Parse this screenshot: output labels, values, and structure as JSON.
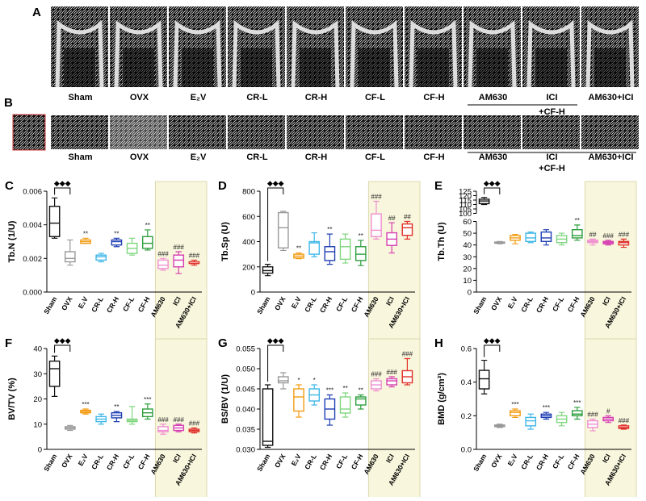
{
  "panel_a": {
    "letter": "A",
    "labels": [
      "Sham",
      "OVX",
      "E₂V",
      "CR-L",
      "CR-H",
      "CF-L",
      "CF-H",
      "AM630",
      "ICI",
      "AM630+ICI"
    ],
    "group_label": "+CF-H"
  },
  "panel_b": {
    "letter": "B",
    "labels": [
      "Sham",
      "OVX",
      "E₂V",
      "CR-L",
      "CR-H",
      "CF-L",
      "CF-H",
      "AM630",
      "ICI",
      "AM630+ICI"
    ],
    "group_label": "+CF-H"
  },
  "chart_data": [
    {
      "type": "box",
      "panel": "C",
      "ylabel": "Tb.N (1/U)",
      "categories": [
        "Sham",
        "OVX",
        "E₂V",
        "CR-L",
        "CR-H",
        "CF-L",
        "CF-H",
        "AM630",
        "ICI",
        "AM630+ICI"
      ],
      "colors": [
        "#111111",
        "#999999",
        "#f39c12",
        "#3fb7e8",
        "#1f3fb4",
        "#7fd67f",
        "#2e9e3e",
        "#f08fd0",
        "#d63fb0",
        "#e0302a"
      ],
      "min": [
        0.0032,
        0.0016,
        0.0029,
        0.0018,
        0.0027,
        0.0022,
        0.0025,
        0.0013,
        0.0011,
        0.0016
      ],
      "q1": [
        0.0033,
        0.0018,
        0.0029,
        0.0019,
        0.0028,
        0.0023,
        0.0026,
        0.0014,
        0.0015,
        0.0017
      ],
      "median": [
        0.0041,
        0.002,
        0.003,
        0.0021,
        0.003,
        0.0026,
        0.0029,
        0.0016,
        0.0019,
        0.0017
      ],
      "q3": [
        0.0051,
        0.0024,
        0.0031,
        0.0022,
        0.0031,
        0.0029,
        0.0033,
        0.0019,
        0.0022,
        0.0018
      ],
      "max": [
        0.0056,
        0.0031,
        0.0032,
        0.0023,
        0.0032,
        0.0032,
        0.0037,
        0.002,
        0.0024,
        0.0019
      ],
      "annotations": [
        null,
        null,
        "**",
        null,
        "**",
        null,
        "**",
        "###",
        "###",
        "###"
      ],
      "comparison_mark": "◆◆◆",
      "group_label": "+CF-H",
      "ylim": [
        0,
        0.006
      ],
      "yticks": [
        {
          "value": 0,
          "label": "0.000"
        },
        {
          "value": 0.002,
          "label": "0.002"
        },
        {
          "value": 0.004,
          "label": "0.004"
        },
        {
          "value": 0.006,
          "label": "0.006"
        }
      ]
    },
    {
      "type": "box",
      "panel": "D",
      "ylabel": "Tb.Sp (U)",
      "categories": [
        "Sham",
        "OVX",
        "E₂V",
        "CR-L",
        "CR-H",
        "CF-L",
        "CF-H",
        "AM630",
        "ICI",
        "AM630+ICI"
      ],
      "colors": [
        "#111111",
        "#999999",
        "#f39c12",
        "#3fb7e8",
        "#1f3fb4",
        "#7fd67f",
        "#2e9e3e",
        "#f08fd0",
        "#d63fb0",
        "#e0302a"
      ],
      "min": [
        130,
        330,
        265,
        280,
        220,
        230,
        210,
        420,
        310,
        420
      ],
      "q1": [
        150,
        350,
        270,
        300,
        250,
        260,
        250,
        440,
        370,
        450
      ],
      "median": [
        170,
        510,
        285,
        390,
        320,
        360,
        300,
        490,
        420,
        510
      ],
      "q3": [
        200,
        630,
        300,
        400,
        360,
        420,
        360,
        620,
        470,
        540
      ],
      "max": [
        220,
        640,
        310,
        470,
        460,
        460,
        410,
        720,
        550,
        560
      ],
      "annotations": [
        null,
        null,
        "**",
        null,
        "**",
        null,
        "**",
        "###",
        "##",
        "##"
      ],
      "comparison_mark": "◆◆◆",
      "group_label": "+CF-H",
      "ylim": [
        0,
        800
      ],
      "yticks": [
        0,
        200,
        400,
        600,
        800
      ]
    },
    {
      "type": "box",
      "panel": "E",
      "ylabel": "Tb.Th (U)",
      "categories": [
        "Sham",
        "OVX",
        "E₂V",
        "CR-L",
        "CR-H",
        "CF-L",
        "CF-H",
        "AM630",
        "ICI",
        "AM630+ICI"
      ],
      "colors": [
        "#111111",
        "#999999",
        "#f39c12",
        "#3fb7e8",
        "#1f3fb4",
        "#7fd67f",
        "#2e9e3e",
        "#f08fd0",
        "#d63fb0",
        "#e0302a"
      ],
      "min": [
        110,
        41,
        41,
        42,
        40,
        40,
        44,
        40,
        40,
        38
      ],
      "q1": [
        111,
        41.5,
        44,
        43,
        43,
        42,
        46,
        42,
        41,
        40
      ],
      "median": [
        114,
        42,
        46,
        46,
        46,
        45,
        48,
        43,
        42,
        42
      ],
      "q3": [
        116,
        42.5,
        48,
        50,
        51,
        48,
        53,
        44,
        43,
        43
      ],
      "max": [
        118,
        43,
        49,
        51,
        53,
        50,
        57,
        45,
        44,
        45
      ],
      "annotations": [
        null,
        null,
        null,
        null,
        null,
        null,
        "**",
        "##",
        "###",
        "###"
      ],
      "comparison_mark": "◆◆◆",
      "group_label": "+CF-H",
      "ylim": [
        0,
        60
      ],
      "yticks": [
        0,
        10,
        20,
        30,
        40,
        50,
        60
      ],
      "upper_ylim": [
        100,
        125
      ],
      "upper_yticks": [
        100,
        105,
        110,
        115,
        120,
        125
      ]
    },
    {
      "type": "box",
      "panel": "F",
      "ylabel": "BV/TV (%)",
      "categories": [
        "Sham",
        "OVX",
        "E₂V",
        "CR-L",
        "CR-H",
        "CF-L",
        "CF-H",
        "AM630",
        "ICI",
        "AM630+ICI"
      ],
      "colors": [
        "#111111",
        "#999999",
        "#f39c12",
        "#3fb7e8",
        "#1f3fb4",
        "#7fd67f",
        "#2e9e3e",
        "#f08fd0",
        "#d63fb0",
        "#e0302a"
      ],
      "min": [
        21,
        7.5,
        14,
        10,
        11,
        10,
        12,
        6,
        7,
        6.5
      ],
      "q1": [
        25,
        8,
        14.5,
        11,
        12.5,
        11,
        13,
        7,
        7.5,
        7
      ],
      "median": [
        32,
        8.5,
        15,
        12,
        13.5,
        11.5,
        14.5,
        7.5,
        8.5,
        7.5
      ],
      "q3": [
        35,
        9,
        15.5,
        13,
        14.5,
        12,
        16,
        9,
        9.5,
        8
      ],
      "max": [
        37,
        9.5,
        16,
        14,
        15,
        17,
        18,
        10,
        10,
        8.5
      ],
      "annotations": [
        null,
        null,
        "***",
        null,
        "**",
        null,
        "***",
        "###",
        "###",
        "###"
      ],
      "comparison_mark": "◆◆◆",
      "group_label": "+CF-H",
      "ylim": [
        0,
        40
      ],
      "yticks": [
        0,
        10,
        20,
        30,
        40
      ]
    },
    {
      "type": "box",
      "panel": "G",
      "ylabel": "BS/BV (1/U)",
      "categories": [
        "Sham",
        "OVX",
        "E₂V",
        "CR-L",
        "CR-H",
        "CF-L",
        "CF-H",
        "AM630",
        "ICI",
        "AM630+ICI"
      ],
      "colors": [
        "#111111",
        "#999999",
        "#f39c12",
        "#3fb7e8",
        "#1f3fb4",
        "#7fd67f",
        "#2e9e3e",
        "#f08fd0",
        "#d63fb0",
        "#e0302a"
      ],
      "min": [
        0.0305,
        0.045,
        0.038,
        0.041,
        0.036,
        0.038,
        0.04,
        0.0445,
        0.0455,
        0.046
      ],
      "q1": [
        0.031,
        0.0465,
        0.0395,
        0.042,
        0.0375,
        0.039,
        0.041,
        0.045,
        0.046,
        0.0465
      ],
      "median": [
        0.032,
        0.047,
        0.043,
        0.0435,
        0.04,
        0.04,
        0.0425,
        0.046,
        0.047,
        0.048
      ],
      "q3": [
        0.045,
        0.048,
        0.045,
        0.045,
        0.0425,
        0.043,
        0.043,
        0.047,
        0.0475,
        0.0495
      ],
      "max": [
        0.046,
        0.049,
        0.046,
        0.046,
        0.0435,
        0.044,
        0.0435,
        0.0475,
        0.048,
        0.0525
      ],
      "annotations": [
        null,
        null,
        "*",
        "*",
        "***",
        "**",
        "**",
        "###",
        "###",
        "###"
      ],
      "comparison_mark": "◆◆◆",
      "group_label": "+CF-H",
      "ylim": [
        0.03,
        0.055
      ],
      "yticks": [
        {
          "value": 0.03,
          "label": "0.030"
        },
        0.035,
        {
          "value": 0.04,
          "label": "0.040"
        },
        0.045,
        {
          "value": 0.05,
          "label": "0.050"
        },
        0.055
      ]
    },
    {
      "type": "box",
      "panel": "H",
      "ylabel": "BMD (g/cm³)",
      "categories": [
        "Sham",
        "OVX",
        "E₂V",
        "CR-L",
        "CR-H",
        "CF-L",
        "CF-H",
        "AM630",
        "ICI",
        "AM630+ICI"
      ],
      "colors": [
        "#111111",
        "#999999",
        "#f39c12",
        "#3fb7e8",
        "#1f3fb4",
        "#7fd67f",
        "#2e9e3e",
        "#f08fd0",
        "#d63fb0",
        "#e0302a"
      ],
      "min": [
        0.33,
        0.13,
        0.19,
        0.12,
        0.18,
        0.14,
        0.18,
        0.11,
        0.16,
        0.12
      ],
      "q1": [
        0.36,
        0.135,
        0.2,
        0.14,
        0.19,
        0.16,
        0.2,
        0.13,
        0.17,
        0.125
      ],
      "median": [
        0.42,
        0.14,
        0.22,
        0.17,
        0.2,
        0.18,
        0.21,
        0.15,
        0.18,
        0.13
      ],
      "q3": [
        0.47,
        0.145,
        0.23,
        0.19,
        0.21,
        0.2,
        0.23,
        0.17,
        0.19,
        0.14
      ],
      "max": [
        0.53,
        0.15,
        0.24,
        0.21,
        0.22,
        0.22,
        0.25,
        0.18,
        0.2,
        0.145
      ],
      "annotations": [
        null,
        null,
        "***",
        null,
        "***",
        null,
        "***",
        "###",
        "#",
        "###"
      ],
      "comparison_mark": "◆◆◆",
      "group_label": "+CF-H",
      "ylim": [
        0,
        0.6
      ],
      "yticks": [
        {
          "value": 0,
          "label": "0.0"
        },
        0.2,
        0.4,
        0.6
      ]
    }
  ]
}
